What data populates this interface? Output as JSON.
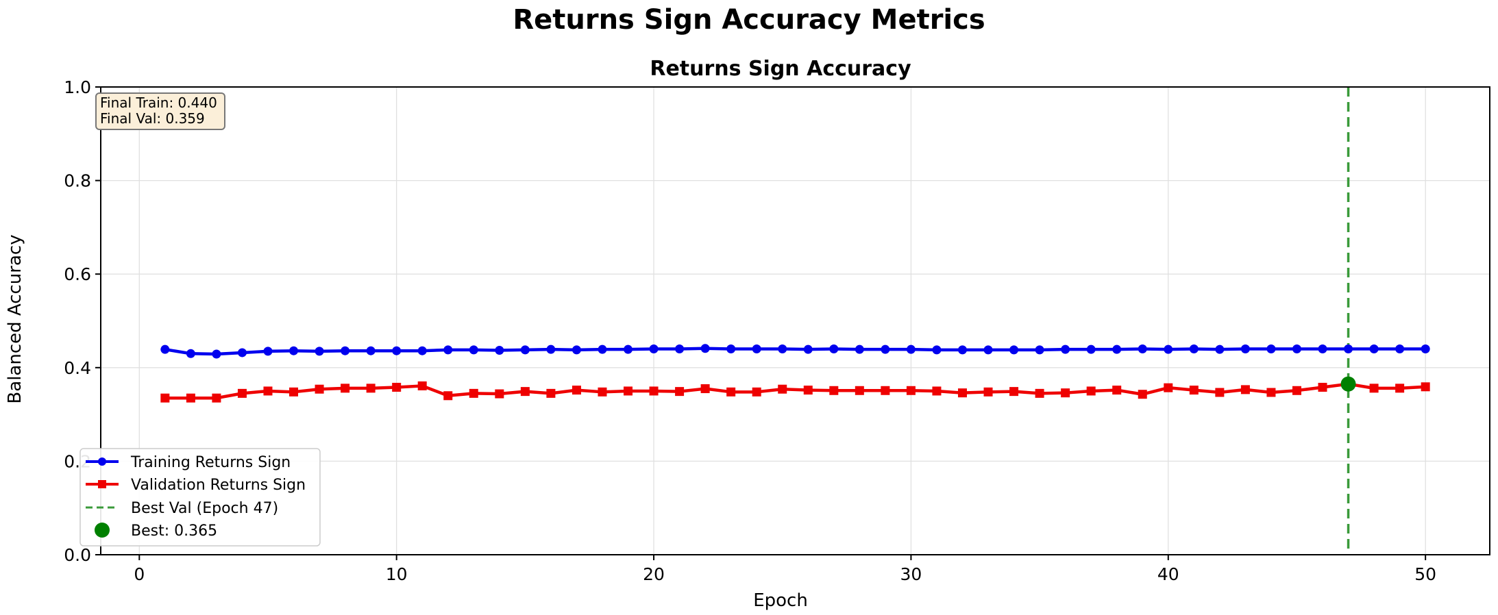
{
  "figure_title": "Returns Sign Accuracy Metrics",
  "chart_data": {
    "type": "line",
    "title": "Returns Sign Accuracy",
    "xlabel": "Epoch",
    "ylabel": "Balanced Accuracy",
    "xlim": [
      -1.5,
      52.5
    ],
    "ylim": [
      0.0,
      1.0
    ],
    "xticks": [
      0,
      10,
      20,
      30,
      40,
      50
    ],
    "yticks": [
      0.0,
      0.2,
      0.4,
      0.6,
      0.8,
      1.0
    ],
    "grid": true,
    "legend_position": "lower-left",
    "x": [
      1,
      2,
      3,
      4,
      5,
      6,
      7,
      8,
      9,
      10,
      11,
      12,
      13,
      14,
      15,
      16,
      17,
      18,
      19,
      20,
      21,
      22,
      23,
      24,
      25,
      26,
      27,
      28,
      29,
      30,
      31,
      32,
      33,
      34,
      35,
      36,
      37,
      38,
      39,
      40,
      41,
      42,
      43,
      44,
      45,
      46,
      47,
      48,
      49,
      50
    ],
    "series": [
      {
        "name": "Training Returns Sign",
        "color": "#0000ee",
        "marker": "circle",
        "values": [
          0.439,
          0.43,
          0.429,
          0.432,
          0.435,
          0.436,
          0.435,
          0.436,
          0.436,
          0.436,
          0.436,
          0.438,
          0.438,
          0.437,
          0.438,
          0.439,
          0.438,
          0.439,
          0.439,
          0.44,
          0.44,
          0.441,
          0.44,
          0.44,
          0.44,
          0.439,
          0.44,
          0.439,
          0.439,
          0.439,
          0.438,
          0.438,
          0.438,
          0.438,
          0.438,
          0.439,
          0.439,
          0.439,
          0.44,
          0.439,
          0.44,
          0.439,
          0.44,
          0.44,
          0.44,
          0.44,
          0.44,
          0.44,
          0.44,
          0.44
        ]
      },
      {
        "name": "Validation Returns Sign",
        "color": "#ee0000",
        "marker": "square",
        "values": [
          0.335,
          0.335,
          0.335,
          0.345,
          0.35,
          0.348,
          0.354,
          0.356,
          0.356,
          0.358,
          0.361,
          0.34,
          0.345,
          0.344,
          0.349,
          0.345,
          0.352,
          0.348,
          0.35,
          0.35,
          0.349,
          0.355,
          0.348,
          0.348,
          0.354,
          0.352,
          0.351,
          0.351,
          0.351,
          0.351,
          0.35,
          0.346,
          0.348,
          0.349,
          0.345,
          0.346,
          0.35,
          0.352,
          0.343,
          0.357,
          0.352,
          0.347,
          0.353,
          0.347,
          0.351,
          0.358,
          0.365,
          0.356,
          0.356,
          0.359
        ]
      }
    ],
    "best_epoch_line": {
      "label": "Best Val (Epoch 47)",
      "x": 47,
      "color": "#3a9a3a"
    },
    "best_point": {
      "label": "Best: 0.365",
      "x": 47,
      "y": 0.365,
      "color": "#008000"
    },
    "annotation": {
      "line1": "Final Train: 0.440",
      "line2": "Final Val: 0.359",
      "box_color": "#fbefd9"
    }
  }
}
